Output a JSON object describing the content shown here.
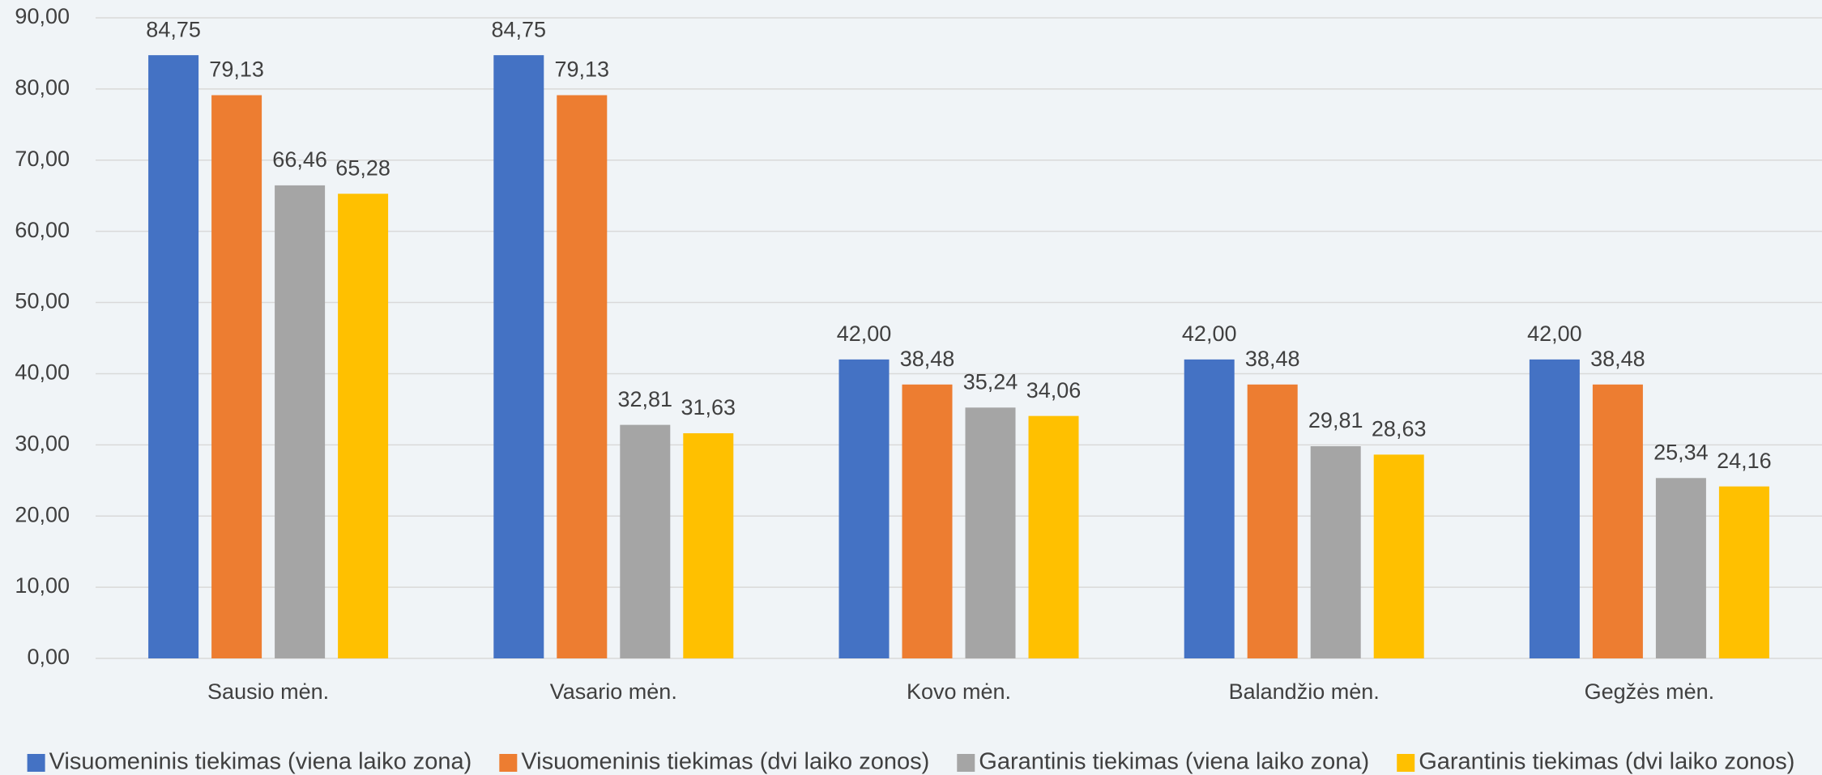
{
  "chart_data": {
    "type": "bar",
    "categories": [
      "Sausio mėn.",
      "Vasario mėn.",
      "Kovo mėn.",
      "Balandžio mėn.",
      "Gegžės mėn."
    ],
    "series": [
      {
        "name": "Visuomeninis tiekimas (viena laiko zona)",
        "color": "#4472c4",
        "values": [
          84.75,
          84.75,
          42.0,
          42.0,
          42.0
        ],
        "value_labels": [
          "84,75",
          "84,75",
          "42,00",
          "42,00",
          "42,00"
        ]
      },
      {
        "name": "Visuomeninis tiekimas (dvi laiko zonos)",
        "color": "#ed7d31",
        "values": [
          79.13,
          79.13,
          38.48,
          38.48,
          38.48
        ],
        "value_labels": [
          "79,13",
          "79,13",
          "38,48",
          "38,48",
          "38,48"
        ]
      },
      {
        "name": "Garantinis tiekimas (viena laiko zona)",
        "color": "#a5a5a5",
        "values": [
          66.46,
          32.81,
          35.24,
          29.81,
          25.34
        ],
        "value_labels": [
          "66,46",
          "32,81",
          "35,24",
          "29,81",
          "25,34"
        ]
      },
      {
        "name": "Garantinis tiekimas (dvi laiko zonos)",
        "color": "#ffc000",
        "values": [
          65.28,
          31.63,
          34.06,
          28.63,
          24.16
        ],
        "value_labels": [
          "65,28",
          "31,63",
          "34,06",
          "28,63",
          "24,16"
        ]
      }
    ],
    "ylim": [
      0,
      90
    ],
    "yticks": [
      {
        "value": 0,
        "label": "0,00"
      },
      {
        "value": 10,
        "label": "10,00"
      },
      {
        "value": 20,
        "label": "20,00"
      },
      {
        "value": 30,
        "label": "30,00"
      },
      {
        "value": 40,
        "label": "40,00"
      },
      {
        "value": 50,
        "label": "50,00"
      },
      {
        "value": 60,
        "label": "60,00"
      },
      {
        "value": 70,
        "label": "70,00"
      },
      {
        "value": 80,
        "label": "80,00"
      },
      {
        "value": 90,
        "label": "90,00"
      }
    ],
    "grid": true,
    "legend": "bottom"
  }
}
